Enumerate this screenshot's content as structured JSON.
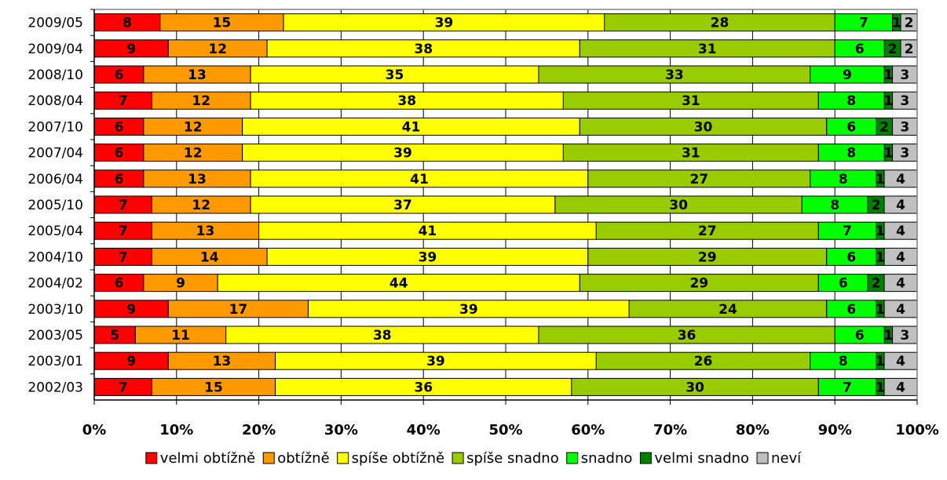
{
  "chart_data": {
    "type": "bar",
    "orientation": "horizontal",
    "stacked": true,
    "normalized_percent": true,
    "categories": [
      "2009/05",
      "2009/04",
      "2008/10",
      "2008/04",
      "2007/10",
      "2007/04",
      "2006/04",
      "2005/10",
      "2005/04",
      "2004/10",
      "2004/02",
      "2003/10",
      "2003/05",
      "2003/01",
      "2002/03"
    ],
    "series": [
      {
        "name": "velmi obtížně",
        "color": "#ff0000",
        "values": [
          8,
          9,
          6,
          7,
          6,
          6,
          6,
          7,
          7,
          7,
          6,
          9,
          5,
          9,
          7
        ]
      },
      {
        "name": "obtížně",
        "color": "#ff9900",
        "values": [
          15,
          12,
          13,
          12,
          12,
          12,
          13,
          12,
          13,
          14,
          9,
          17,
          11,
          13,
          15
        ]
      },
      {
        "name": "spíše obtížně",
        "color": "#ffff00",
        "values": [
          39,
          38,
          35,
          38,
          41,
          39,
          41,
          37,
          41,
          39,
          44,
          39,
          38,
          39,
          36
        ]
      },
      {
        "name": "spíše snadno",
        "color": "#99cc00",
        "values": [
          28,
          31,
          33,
          31,
          30,
          31,
          27,
          30,
          27,
          29,
          29,
          24,
          36,
          26,
          30
        ]
      },
      {
        "name": "snadno",
        "color": "#00ff00",
        "values": [
          7,
          6,
          9,
          8,
          6,
          8,
          8,
          8,
          7,
          6,
          6,
          6,
          6,
          8,
          7
        ]
      },
      {
        "name": "velmi snadno",
        "color": "#008000",
        "values": [
          1,
          2,
          1,
          1,
          2,
          1,
          1,
          2,
          1,
          1,
          2,
          1,
          1,
          1,
          1
        ]
      },
      {
        "name": "neví",
        "color": "#c0c0c0",
        "values": [
          2,
          2,
          3,
          3,
          3,
          3,
          4,
          4,
          4,
          4,
          4,
          4,
          3,
          4,
          4
        ]
      }
    ],
    "x_ticks": [
      "0%",
      "10%",
      "20%",
      "30%",
      "40%",
      "50%",
      "60%",
      "70%",
      "80%",
      "90%",
      "100%"
    ],
    "xlim": [
      0,
      100
    ],
    "grid": true,
    "legend_position": "bottom",
    "title": "",
    "xlabel": "",
    "ylabel": ""
  }
}
